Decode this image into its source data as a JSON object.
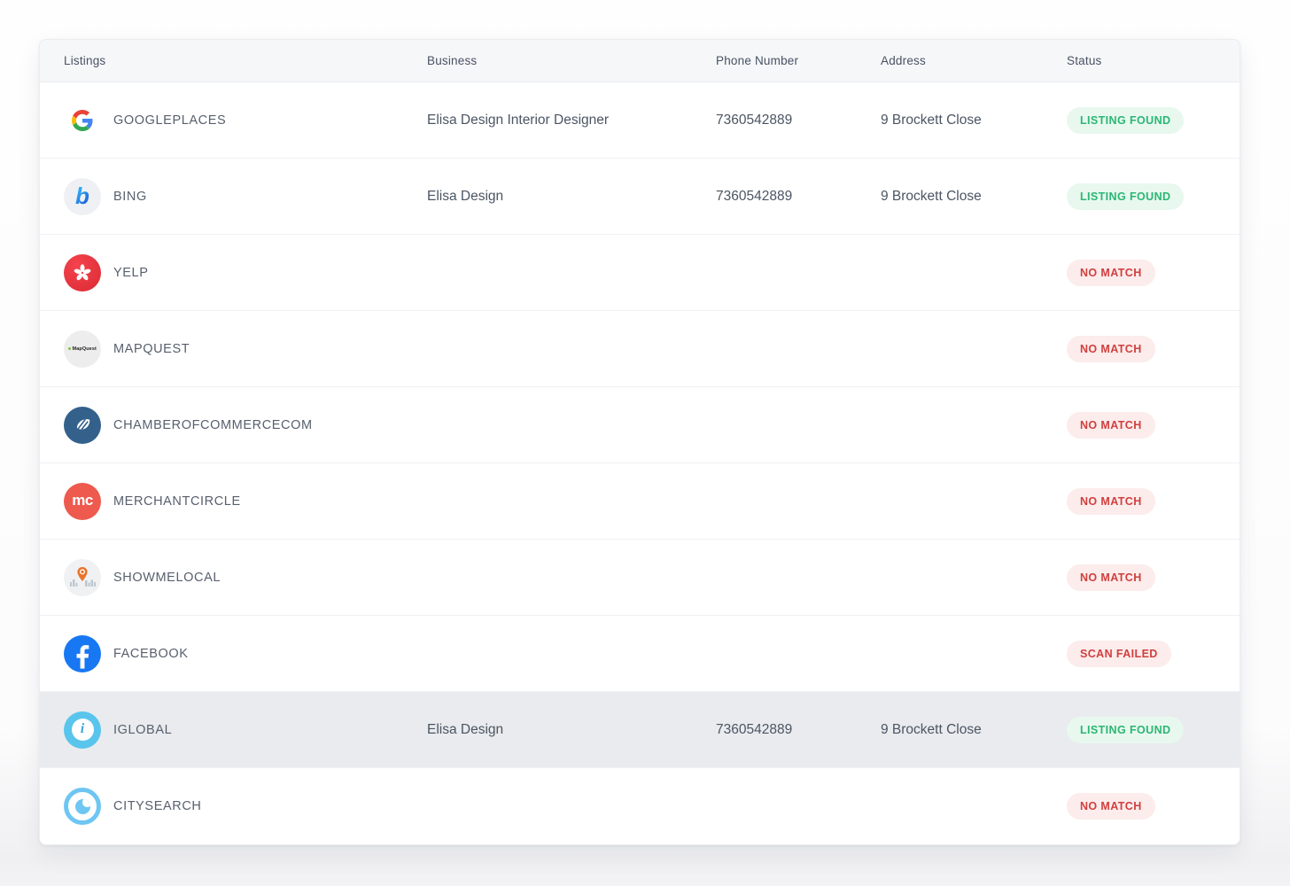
{
  "table": {
    "columns": [
      {
        "key": "listings",
        "label": "Listings"
      },
      {
        "key": "business",
        "label": "Business"
      },
      {
        "key": "phone",
        "label": "Phone Number"
      },
      {
        "key": "address",
        "label": "Address"
      },
      {
        "key": "status",
        "label": "Status"
      }
    ],
    "rows": [
      {
        "site": "GOOGLEPLACES",
        "icon": "google-icon",
        "business": "Elisa Design Interior Designer",
        "phone": "7360542889",
        "address": "9 Brockett Close",
        "status": "LISTING FOUND",
        "status_type": "found",
        "highlighted": false
      },
      {
        "site": "BING",
        "icon": "bing-icon",
        "business": "Elisa Design",
        "phone": "7360542889",
        "address": "9 Brockett Close",
        "status": "LISTING FOUND",
        "status_type": "found",
        "highlighted": false
      },
      {
        "site": "YELP",
        "icon": "yelp-icon",
        "business": "",
        "phone": "",
        "address": "",
        "status": "NO MATCH",
        "status_type": "nomatch",
        "highlighted": false
      },
      {
        "site": "MAPQUEST",
        "icon": "mapquest-icon",
        "business": "",
        "phone": "",
        "address": "",
        "status": "NO MATCH",
        "status_type": "nomatch",
        "highlighted": false
      },
      {
        "site": "CHAMBEROFCOMMERCECOM",
        "icon": "chamberofcommerce-icon",
        "business": "",
        "phone": "",
        "address": "",
        "status": "NO MATCH",
        "status_type": "nomatch",
        "highlighted": false
      },
      {
        "site": "MERCHANTCIRCLE",
        "icon": "merchantcircle-icon",
        "business": "",
        "phone": "",
        "address": "",
        "status": "NO MATCH",
        "status_type": "nomatch",
        "highlighted": false
      },
      {
        "site": "SHOWMELOCAL",
        "icon": "showmelocal-icon",
        "business": "",
        "phone": "",
        "address": "",
        "status": "NO MATCH",
        "status_type": "nomatch",
        "highlighted": false
      },
      {
        "site": "FACEBOOK",
        "icon": "facebook-icon",
        "business": "",
        "phone": "",
        "address": "",
        "status": "SCAN FAILED",
        "status_type": "failed",
        "highlighted": false
      },
      {
        "site": "IGLOBAL",
        "icon": "iglobal-icon",
        "business": "Elisa Design",
        "phone": "7360542889",
        "address": "9 Brockett Close",
        "status": "LISTING FOUND",
        "status_type": "found",
        "highlighted": true
      },
      {
        "site": "CITYSEARCH",
        "icon": "citysearch-icon",
        "business": "",
        "phone": "",
        "address": "",
        "status": "NO MATCH",
        "status_type": "nomatch",
        "highlighted": false
      }
    ]
  },
  "colors": {
    "status_found_text": "#2bb673",
    "status_found_bg": "#e8f8ef",
    "status_fail_text": "#d0403e",
    "status_fail_bg": "#fcecec",
    "header_bg": "#f6f7f9",
    "highlight_row_bg": "#e9ebee"
  }
}
